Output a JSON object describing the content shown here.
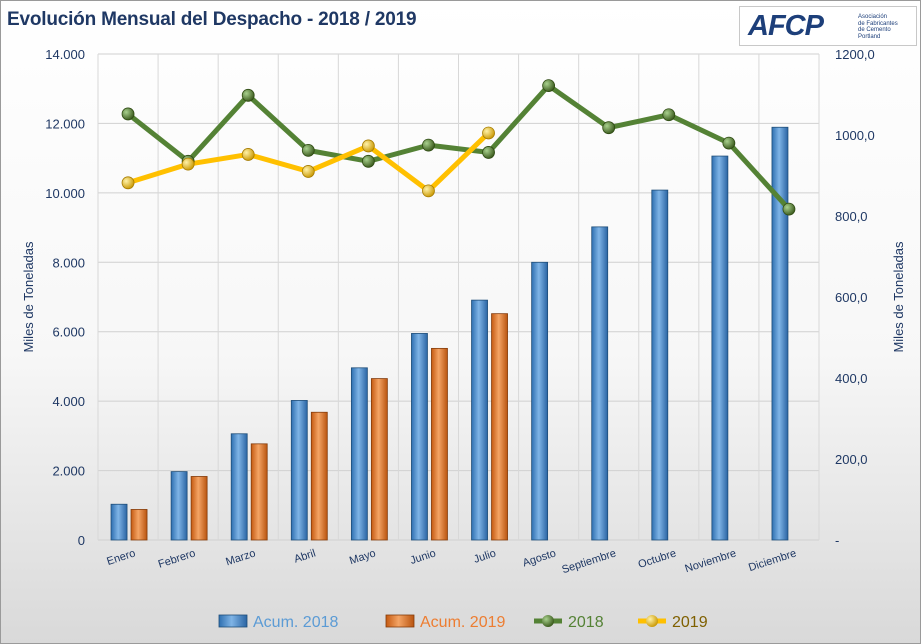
{
  "title": "Evolución Mensual del Despacho - 2018 / 2019",
  "logo": {
    "text": "AFCP",
    "subtitle_lines": [
      "Asociación",
      "de Fabricantes",
      "de Cemento",
      "Portland"
    ]
  },
  "colors": {
    "bar2018": "#5b9bd5",
    "bar2019": "#ed7d31",
    "line2018": "#548235",
    "line2019": "#ffc000",
    "text": "#1f3864"
  },
  "chart_data": {
    "type": "bar",
    "categories": [
      "Enero",
      "Febrero",
      "Marzo",
      "Abril",
      "Mayo",
      "Junio",
      "Julio",
      "Agosto",
      "Septiembre",
      "Octubre",
      "Noviembre",
      "Diciembre"
    ],
    "ylabel": "Miles de Toneladas",
    "ylabel_right": "Miles de Toneladas",
    "ylim": [
      0,
      14000
    ],
    "ylim_right": [
      0,
      1200
    ],
    "y_ticks": [
      "0",
      "2.000",
      "4.000",
      "6.000",
      "8.000",
      "10.000",
      "12.000",
      "14.000"
    ],
    "y_ticks_right": [
      "-",
      "200,0",
      "400,0",
      "600,0",
      "800,0",
      "1000,0",
      "1200,0"
    ],
    "grid": true,
    "legend_position": "bottom",
    "bar_series": [
      {
        "name": "Acum. 2018",
        "values": [
          1030,
          1970,
          3060,
          4020,
          4960,
          5950,
          6910,
          8000,
          9020,
          10080,
          11060,
          11890
        ]
      },
      {
        "name": "Acum. 2019",
        "values": [
          880,
          1830,
          2770,
          3680,
          4650,
          5520,
          6520,
          null,
          null,
          null,
          null,
          null
        ]
      }
    ],
    "line_series": [
      {
        "name": "2018",
        "axis": "right",
        "values": [
          1052,
          935,
          1098,
          962,
          935,
          975,
          957,
          1122,
          1018,
          1050,
          980,
          817
        ]
      },
      {
        "name": "2019",
        "axis": "right",
        "values": [
          882,
          928,
          952,
          910,
          973,
          862,
          1005,
          null,
          null,
          null,
          null,
          null
        ]
      }
    ]
  }
}
